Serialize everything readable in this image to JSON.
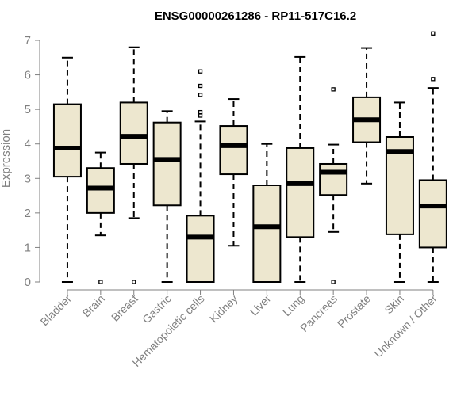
{
  "chart_data": {
    "type": "boxplot",
    "title": "ENSG00000261286 - RP11-517C16.2",
    "xlabel": "",
    "ylabel": "Expression",
    "ylim": [
      0,
      7
    ],
    "yticks": [
      "0",
      "1",
      "2",
      "3",
      "4",
      "5",
      "6",
      "7"
    ],
    "categories": [
      "Bladder",
      "Brain",
      "Breast",
      "Gastric",
      "Hematopoietic cells",
      "Kidney",
      "Liver",
      "Lung",
      "Pancreas",
      "Prostate",
      "Skin",
      "Unknown / Other"
    ],
    "boxes": [
      {
        "category": "Bladder",
        "whisker_low": 0,
        "q1": 3.05,
        "median": 3.88,
        "q3": 5.15,
        "whisker_high": 6.5,
        "outliers": []
      },
      {
        "category": "Brain",
        "whisker_low": 1.35,
        "q1": 2.0,
        "median": 2.72,
        "q3": 3.3,
        "whisker_high": 3.75,
        "outliers": [
          0
        ]
      },
      {
        "category": "Breast",
        "whisker_low": 1.85,
        "q1": 3.42,
        "median": 4.22,
        "q3": 5.2,
        "whisker_high": 6.8,
        "outliers": [
          0
        ]
      },
      {
        "category": "Gastric",
        "whisker_low": 0,
        "q1": 2.22,
        "median": 3.55,
        "q3": 4.62,
        "whisker_high": 4.95,
        "outliers": []
      },
      {
        "category": "Hematopoietic cells",
        "whisker_low": 0,
        "q1": 0,
        "median": 1.3,
        "q3": 1.92,
        "whisker_high": 4.65,
        "outliers": [
          4.82,
          4.92,
          5.42,
          5.68,
          6.1
        ]
      },
      {
        "category": "Kidney",
        "whisker_low": 1.05,
        "q1": 3.12,
        "median": 3.95,
        "q3": 4.52,
        "whisker_high": 5.3,
        "outliers": []
      },
      {
        "category": "Liver",
        "whisker_low": 0,
        "q1": 0,
        "median": 1.6,
        "q3": 2.8,
        "whisker_high": 4.0,
        "outliers": []
      },
      {
        "category": "Lung",
        "whisker_low": 0,
        "q1": 1.3,
        "median": 2.85,
        "q3": 3.88,
        "whisker_high": 6.52,
        "outliers": []
      },
      {
        "category": "Pancreas",
        "whisker_low": 1.45,
        "q1": 2.52,
        "median": 3.18,
        "q3": 3.42,
        "whisker_high": 3.98,
        "outliers": [
          0,
          5.58
        ]
      },
      {
        "category": "Prostate",
        "whisker_low": 2.85,
        "q1": 4.05,
        "median": 4.7,
        "q3": 5.35,
        "whisker_high": 6.78,
        "outliers": []
      },
      {
        "category": "Skin",
        "whisker_low": 0,
        "q1": 1.38,
        "median": 3.78,
        "q3": 4.2,
        "whisker_high": 5.2,
        "outliers": []
      },
      {
        "category": "Unknown / Other",
        "whisker_low": 0,
        "q1": 1.0,
        "median": 2.2,
        "q3": 2.95,
        "whisker_high": 5.62,
        "outliers": [
          5.88,
          7.2
        ]
      }
    ],
    "colors": {
      "box_fill": "#EDE7CF",
      "box_stroke": "#000000",
      "median": "#000000",
      "axis": "#808080",
      "tick_text": "#808080"
    }
  }
}
